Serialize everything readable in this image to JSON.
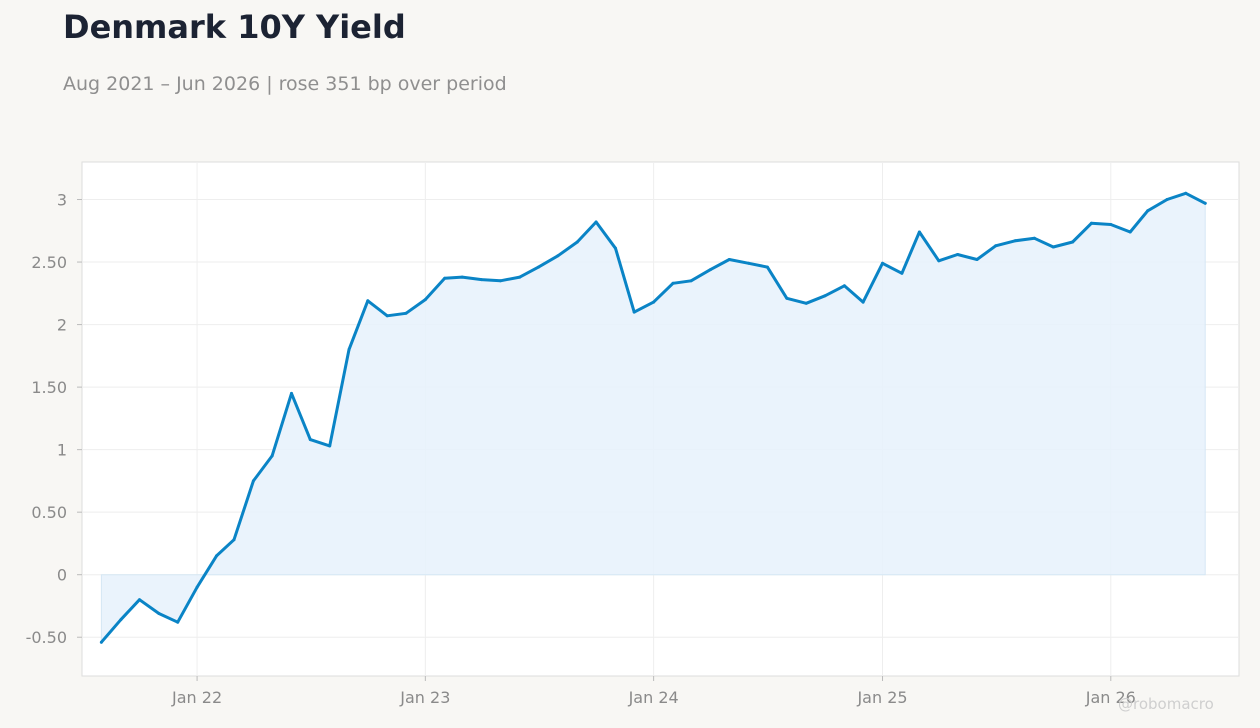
{
  "header": {
    "title": "Denmark 10Y Yield",
    "subtitle": "Aug 2021 – Jun 2026 | rose 351 bp over period"
  },
  "watermark": "@robomacro",
  "colors": {
    "line": "#0a84c6",
    "fill": "#e6f1fb",
    "background": "#f8f7f4",
    "plot_background": "#ffffff",
    "grid": "#eeeeee",
    "axis_text": "#8a8a8a"
  },
  "chart_data": {
    "type": "area",
    "title": "Denmark 10Y Yield",
    "xlabel": "",
    "ylabel": "",
    "xlim": [
      "2021-07-01",
      "2026-07-25"
    ],
    "ylim": [
      -0.81,
      3.3
    ],
    "y_ticks": [
      -0.5,
      0,
      0.5,
      1,
      1.5,
      2,
      2.5,
      3
    ],
    "y_tick_labels": [
      "-0.50",
      "0",
      "0.50",
      "1",
      "1.50",
      "2",
      "2.50",
      "3"
    ],
    "x_ticks": [
      "2022-01-01",
      "2023-01-01",
      "2024-01-01",
      "2025-01-01",
      "2026-01-01"
    ],
    "x_tick_labels": [
      "Jan 22",
      "Jan 23",
      "Jan 24",
      "Jan 25",
      "Jan 26"
    ],
    "grid": true,
    "legend": "none",
    "series": [
      {
        "x": [
          "2021-08-01",
          "2021-09-01",
          "2021-10-01",
          "2021-11-01",
          "2021-12-01",
          "2022-01-01",
          "2022-02-01",
          "2022-03-01",
          "2022-04-01",
          "2022-05-01",
          "2022-06-01",
          "2022-07-01",
          "2022-08-01",
          "2022-09-01",
          "2022-10-01",
          "2022-11-01",
          "2022-12-01",
          "2023-01-01",
          "2023-02-01",
          "2023-03-01",
          "2023-04-01",
          "2023-05-01",
          "2023-06-01",
          "2023-07-01",
          "2023-08-01",
          "2023-09-01",
          "2023-10-01",
          "2023-11-01",
          "2023-12-01",
          "2024-01-01",
          "2024-02-01",
          "2024-03-01",
          "2024-04-01",
          "2024-05-01",
          "2024-06-01",
          "2024-07-01",
          "2024-08-01",
          "2024-09-01",
          "2024-10-01",
          "2024-11-01",
          "2024-12-01",
          "2025-01-01",
          "2025-02-01",
          "2025-03-01",
          "2025-04-01",
          "2025-05-01",
          "2025-06-01",
          "2025-07-01",
          "2025-08-01",
          "2025-09-01",
          "2025-10-01",
          "2025-11-01",
          "2025-12-01",
          "2026-01-01",
          "2026-02-01",
          "2026-03-01",
          "2026-04-01",
          "2026-05-01",
          "2026-06-01"
        ],
        "y": [
          -0.54,
          -0.36,
          -0.2,
          -0.31,
          -0.38,
          -0.1,
          0.15,
          0.28,
          0.75,
          0.95,
          1.45,
          1.08,
          1.03,
          1.8,
          2.19,
          2.07,
          2.09,
          2.2,
          2.37,
          2.38,
          2.36,
          2.35,
          2.38,
          2.46,
          2.55,
          2.66,
          2.82,
          2.61,
          2.1,
          2.18,
          2.33,
          2.35,
          2.44,
          2.52,
          2.49,
          2.46,
          2.21,
          2.17,
          2.23,
          2.31,
          2.18,
          2.49,
          2.41,
          2.74,
          2.51,
          2.56,
          2.52,
          2.63,
          2.67,
          2.69,
          2.62,
          2.66,
          2.81,
          2.8,
          2.74,
          2.91,
          3.0,
          3.05,
          2.97
        ]
      }
    ]
  }
}
